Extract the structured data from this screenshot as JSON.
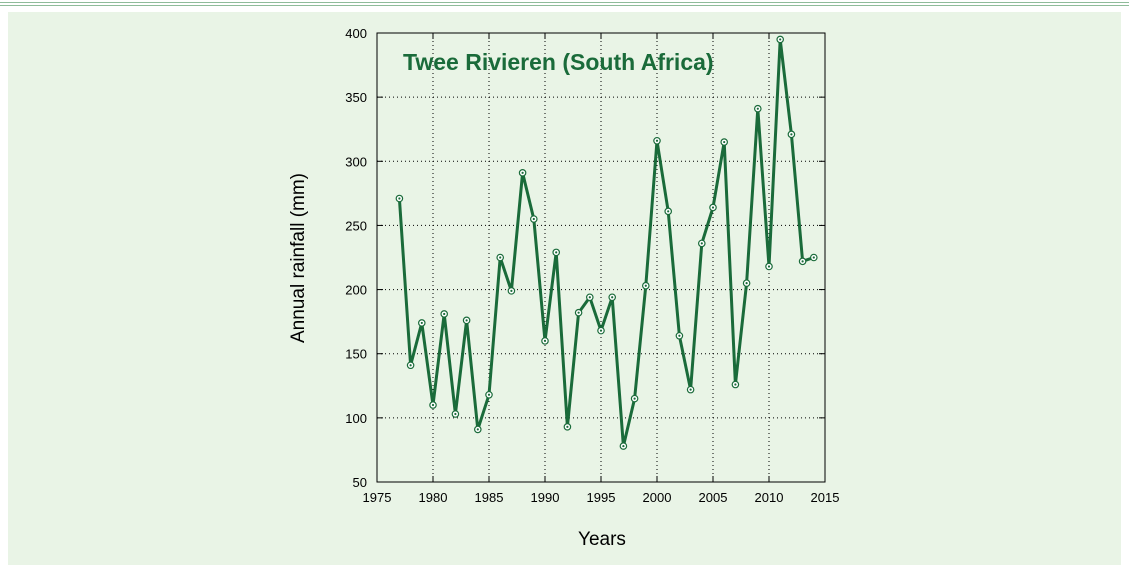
{
  "chart_data": {
    "type": "line",
    "title": "Twee Rivieren (South Africa)",
    "xlabel": "Years",
    "ylabel": "Annual rainfall (mm)",
    "xlim": [
      1975,
      2015
    ],
    "ylim": [
      50,
      400
    ],
    "xticks": [
      1975,
      1980,
      1985,
      1990,
      1995,
      2000,
      2005,
      2010,
      2015
    ],
    "yticks": [
      50,
      100,
      150,
      200,
      250,
      300,
      350,
      400
    ],
    "grid": true,
    "line_color": "#1a6b3a",
    "x": [
      1977,
      1978,
      1979,
      1980,
      1981,
      1982,
      1983,
      1984,
      1985,
      1986,
      1987,
      1988,
      1989,
      1990,
      1991,
      1992,
      1993,
      1994,
      1995,
      1996,
      1997,
      1998,
      1999,
      2000,
      2001,
      2002,
      2003,
      2004,
      2005,
      2006,
      2007,
      2008,
      2009,
      2010,
      2011,
      2012,
      2013,
      2014
    ],
    "values": [
      271,
      141,
      174,
      110,
      181,
      103,
      176,
      91,
      118,
      225,
      199,
      291,
      255,
      160,
      229,
      93,
      182,
      194,
      168,
      194,
      78,
      115,
      203,
      316,
      261,
      164,
      122,
      236,
      264,
      315,
      126,
      205,
      341,
      218,
      395,
      321,
      222,
      225
    ]
  }
}
